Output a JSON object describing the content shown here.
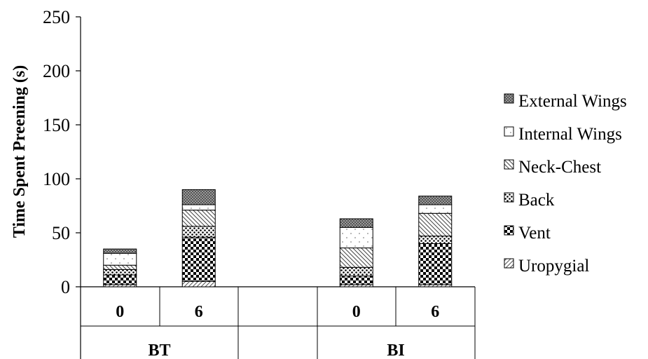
{
  "chart_data": {
    "type": "bar",
    "stacked": true,
    "ylabel": "Time Spent Preening (s)",
    "xlabel": "",
    "ylim": [
      0,
      250
    ],
    "yticks": [
      "0",
      "50",
      "100",
      "150",
      "200",
      "250"
    ],
    "categories": [
      "0",
      "6",
      "0",
      "6"
    ],
    "groups": [
      {
        "label": "BT",
        "categories": [
          "0",
          "6"
        ]
      },
      {
        "label": "BI",
        "categories": [
          "0",
          "6"
        ]
      }
    ],
    "series": [
      {
        "name": "Uropygial",
        "values": [
          2,
          5,
          2,
          2
        ]
      },
      {
        "name": "Vent",
        "values": [
          9,
          41,
          8,
          38
        ]
      },
      {
        "name": "Back",
        "values": [
          5,
          10,
          8,
          7
        ]
      },
      {
        "name": "Neck-Chest",
        "values": [
          4,
          15,
          18,
          21
        ]
      },
      {
        "name": "Internal Wings",
        "values": [
          11,
          5,
          19,
          8
        ]
      },
      {
        "name": "External Wings",
        "values": [
          4,
          14,
          8,
          8
        ]
      }
    ],
    "legend_position": "right",
    "grid": false
  }
}
